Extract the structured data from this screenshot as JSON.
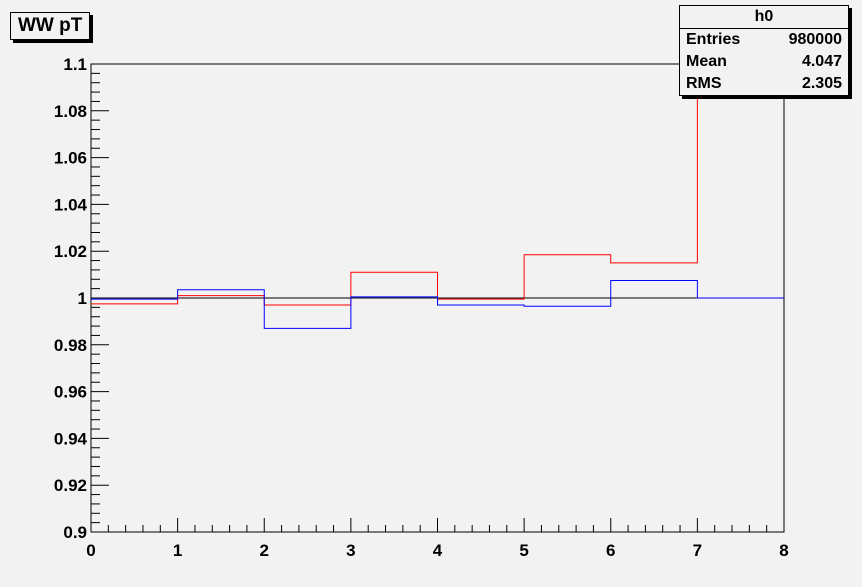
{
  "title": "WW pT",
  "stats": {
    "name": "h0",
    "rows": [
      {
        "label": "Entries",
        "value": "980000"
      },
      {
        "label": "Mean",
        "value": "4.047"
      },
      {
        "label": "RMS",
        "value": "2.305"
      }
    ]
  },
  "chart_data": {
    "type": "line",
    "step": true,
    "xlim": [
      0,
      8
    ],
    "ylim": [
      0.9,
      1.1
    ],
    "x_ticks": [
      "0",
      "1",
      "2",
      "3",
      "4",
      "5",
      "6",
      "7",
      "8"
    ],
    "y_ticks": [
      "0.9",
      "0.92",
      "0.94",
      "0.96",
      "0.98",
      "1",
      "1.02",
      "1.04",
      "1.06",
      "1.08",
      "1.1"
    ],
    "bin_edges": [
      0,
      1,
      2,
      3,
      4,
      5,
      6,
      7,
      8
    ],
    "series": [
      {
        "color": "#000000",
        "values": [
          1.0,
          1.0,
          1.0,
          1.0,
          1.0,
          1.0,
          1.0,
          1.0
        ]
      },
      {
        "color": "#ff0000",
        "values": [
          0.9975,
          1.001,
          0.997,
          1.011,
          0.9995,
          1.0185,
          1.015,
          1.16
        ]
      },
      {
        "color": "#0000ff",
        "values": [
          0.9995,
          1.0035,
          0.987,
          1.0005,
          0.997,
          0.9965,
          1.0075,
          1.0
        ]
      }
    ],
    "grid": false
  }
}
